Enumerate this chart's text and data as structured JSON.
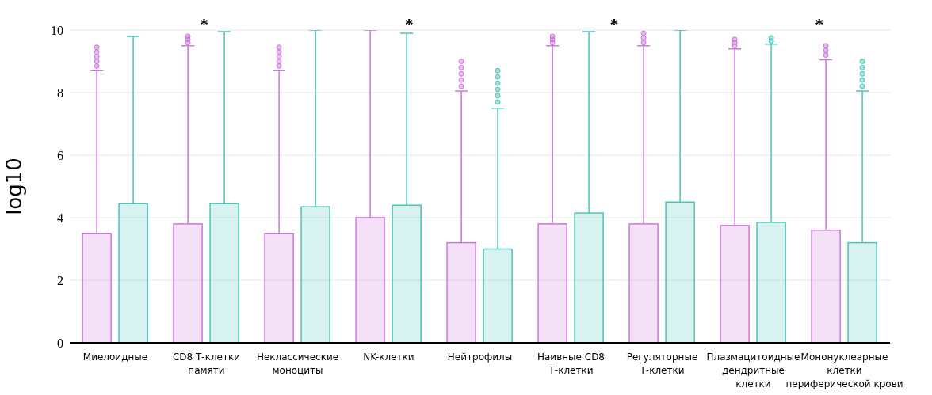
{
  "chart_data": {
    "type": "box",
    "ylabel": "log10",
    "categories": [
      "Миелоидные",
      "CD8 Т-клетки\nпамяти",
      "Неклассические\nмоноциты",
      "NK-клетки",
      "Нейтрофилы",
      "Наивные  CD8\nТ-клетки",
      "Регуляторные\nТ-клетки",
      "Плазмацитоидные\nдендритные\nклетки",
      "Мононуклеарные\nклетки\nпериферической крови"
    ],
    "series": [
      {
        "color": "#cc77dd",
        "boxes": [
          {
            "low": 0,
            "q1": 0,
            "median": 0,
            "q3": 3.5,
            "high": 8.7,
            "outliers": [
              8.85,
              9.0,
              9.15,
              9.3,
              9.45
            ]
          },
          {
            "low": 0,
            "q1": 0,
            "median": 0,
            "q3": 3.8,
            "high": 9.5,
            "outliers": [
              9.6,
              9.7,
              9.8
            ]
          },
          {
            "low": 0,
            "q1": 0,
            "median": 0,
            "q3": 3.5,
            "high": 8.7,
            "outliers": [
              8.85,
              9.0,
              9.15,
              9.3,
              9.45
            ]
          },
          {
            "low": 0,
            "q1": 0,
            "median": 0,
            "q3": 4.0,
            "high": 10.0
          },
          {
            "low": 0,
            "q1": 0,
            "median": 0,
            "q3": 3.2,
            "high": 8.05,
            "outliers": [
              8.2,
              8.4,
              8.6,
              8.8,
              9.0
            ]
          },
          {
            "low": 0,
            "q1": 0,
            "median": 0,
            "q3": 3.8,
            "high": 9.5,
            "outliers": [
              9.6,
              9.7,
              9.8
            ]
          },
          {
            "low": 0,
            "q1": 0,
            "median": 0,
            "q3": 3.8,
            "high": 9.5,
            "outliers": [
              9.6,
              9.75,
              9.9
            ]
          },
          {
            "low": 0,
            "q1": 0,
            "median": 0,
            "q3": 3.75,
            "high": 9.4,
            "outliers": [
              9.5,
              9.6,
              9.7
            ]
          },
          {
            "low": 0,
            "q1": 0,
            "median": 0,
            "q3": 3.6,
            "high": 9.05,
            "outliers": [
              9.2,
              9.35,
              9.5
            ]
          }
        ]
      },
      {
        "color": "#4cc4b8",
        "boxes": [
          {
            "low": 0,
            "q1": 0,
            "median": 0,
            "q3": 4.45,
            "high": 9.8
          },
          {
            "low": 0,
            "q1": 0,
            "median": 0,
            "q3": 4.45,
            "high": 9.95
          },
          {
            "low": 0,
            "q1": 0,
            "median": 0,
            "q3": 4.35,
            "high": 10.0
          },
          {
            "low": 0,
            "q1": 0,
            "median": 0,
            "q3": 4.4,
            "high": 9.9
          },
          {
            "low": 0,
            "q1": 0,
            "median": 0,
            "q3": 3.0,
            "high": 7.5,
            "outliers": [
              7.7,
              7.9,
              8.1,
              8.3,
              8.5,
              8.7
            ]
          },
          {
            "low": 0,
            "q1": 0,
            "median": 0,
            "q3": 4.15,
            "high": 9.95
          },
          {
            "low": 0,
            "q1": 0,
            "median": 0,
            "q3": 4.5,
            "high": 10.0
          },
          {
            "low": 0,
            "q1": 0,
            "median": 0,
            "q3": 3.85,
            "high": 9.55,
            "outliers": [
              9.65,
              9.75
            ]
          },
          {
            "low": 0,
            "q1": 0,
            "median": 0,
            "q3": 3.2,
            "high": 8.05,
            "outliers": [
              8.2,
              8.4,
              8.6,
              8.8,
              9.0
            ]
          }
        ]
      }
    ],
    "ylim": [
      0,
      10
    ],
    "yticks": [
      0,
      2,
      4,
      6,
      8,
      10
    ],
    "grid": "y",
    "annotations": [
      "*",
      "*",
      "*",
      "*"
    ]
  }
}
